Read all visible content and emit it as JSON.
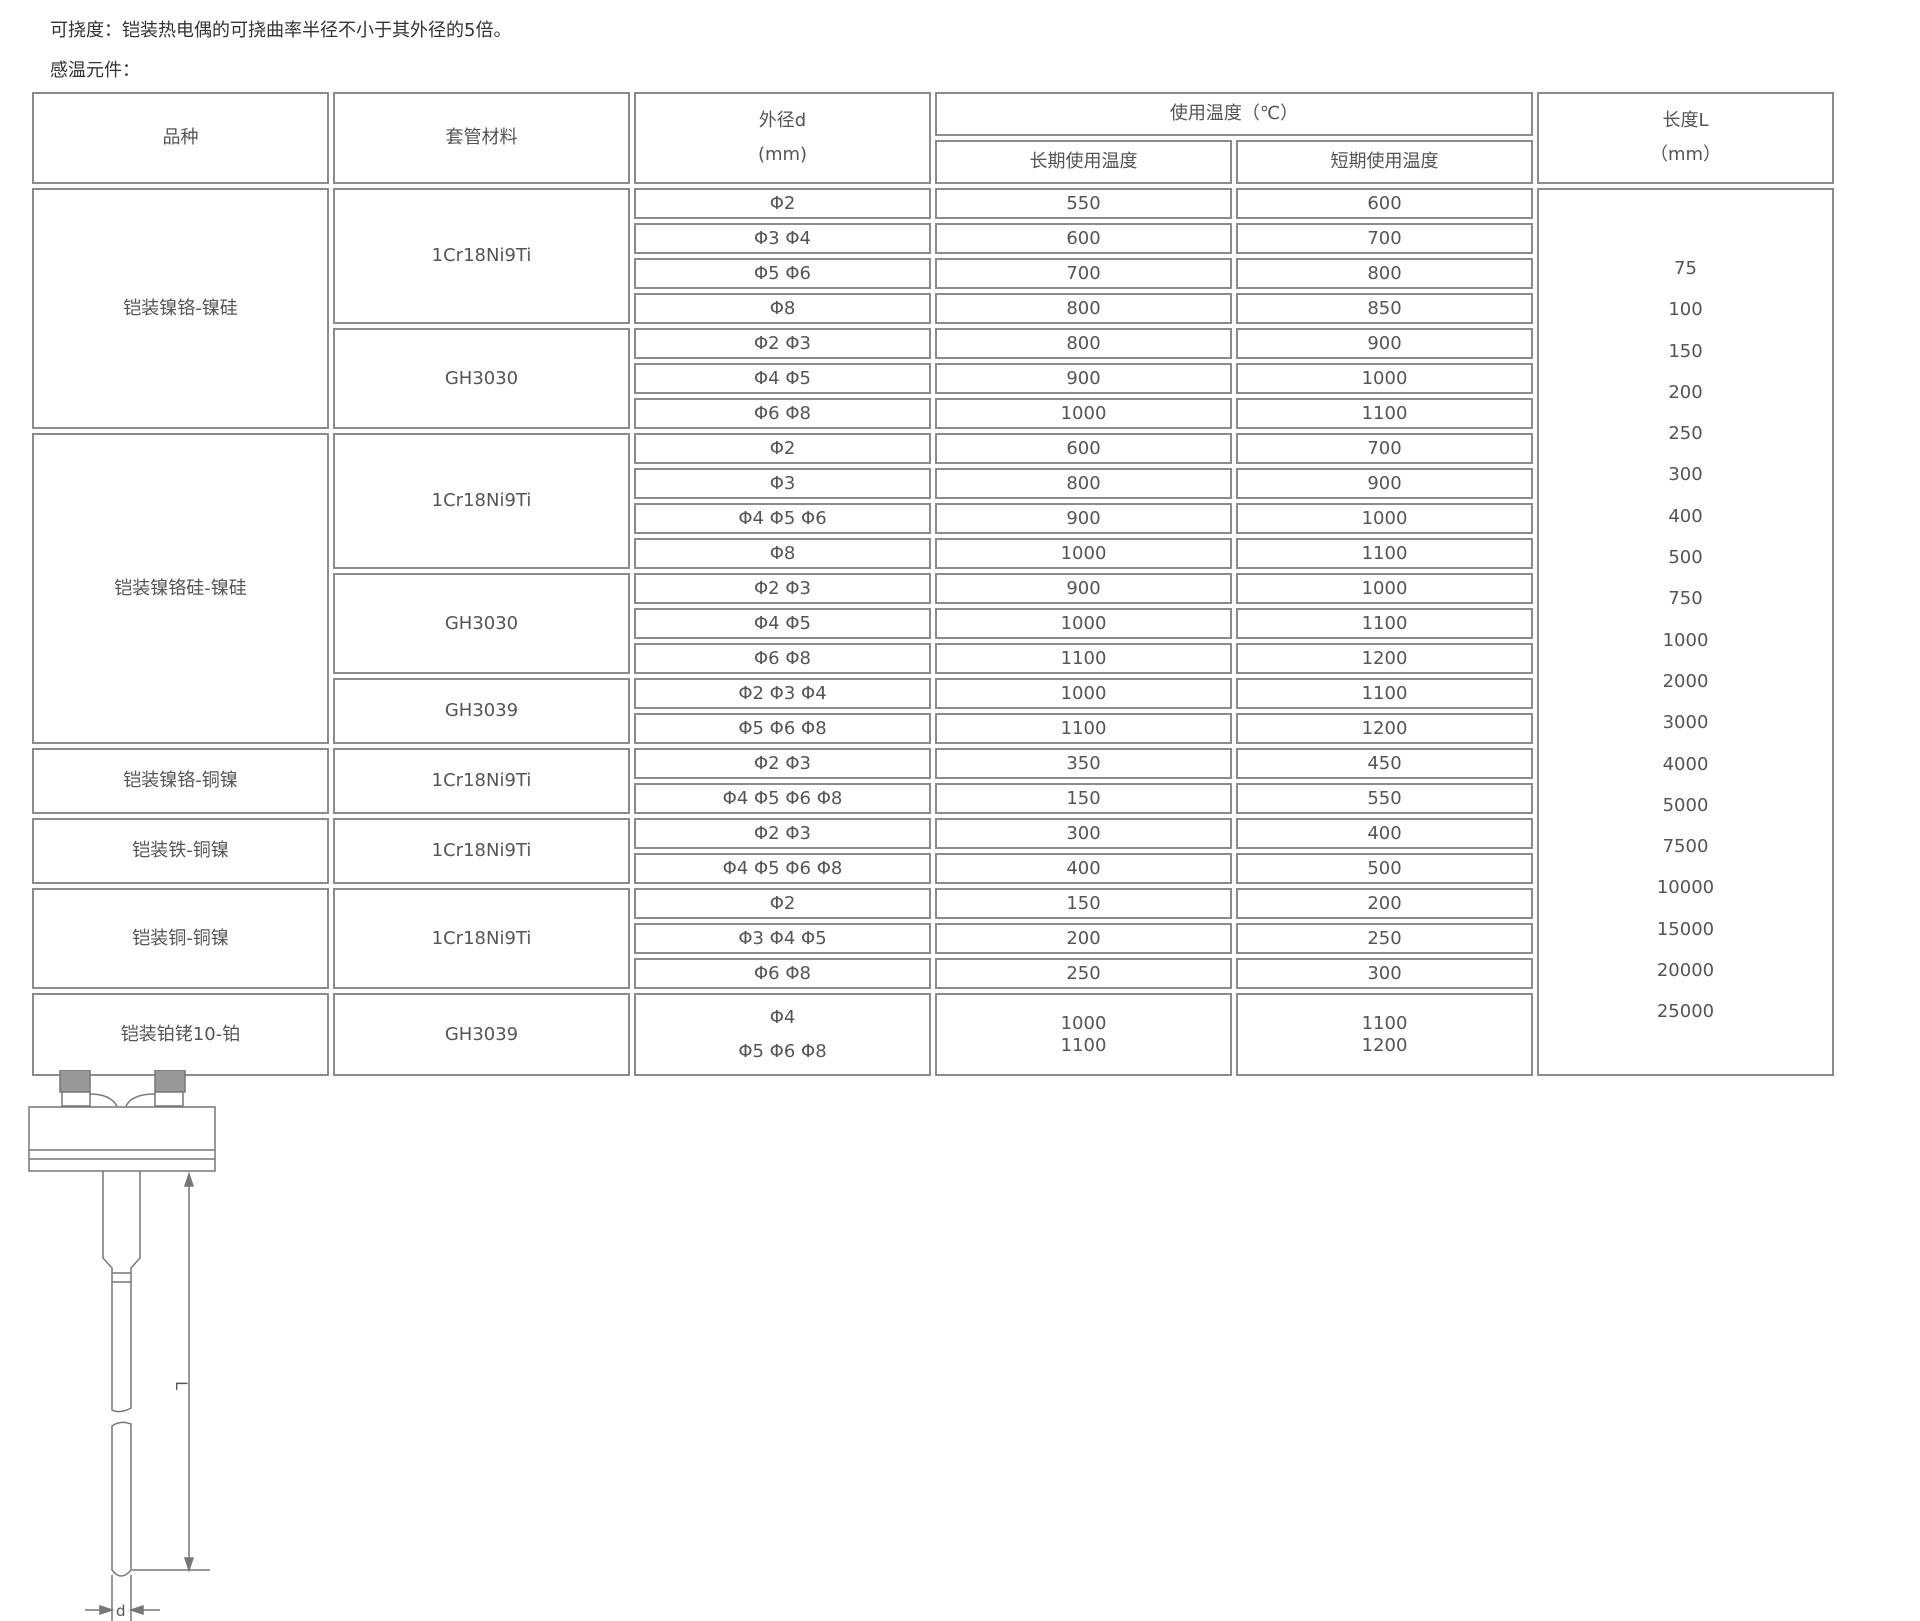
{
  "notes": {
    "flex": "可挠度：铠装热电偶的可挠曲率半径不小于其外径的5倍。",
    "element": "感温元件："
  },
  "header": {
    "variety": "品种",
    "sheath": "套管材料",
    "diameter": [
      "外径d",
      "(mm)"
    ],
    "temp": "使用温度（℃）",
    "long_term": "长期使用温度",
    "short_term": "短期使用温度",
    "length": [
      "长度L",
      "（mm）"
    ]
  },
  "groups": [
    {
      "variety": "铠装镍铬-镍硅",
      "sheaths": [
        {
          "material": "1Cr18Ni9Ti",
          "rows": [
            {
              "d": [
                "Φ2"
              ],
              "long": [
                "550"
              ],
              "short": [
                "600"
              ]
            },
            {
              "d": [
                "Φ3  Φ4"
              ],
              "long": [
                "600"
              ],
              "short": [
                "700"
              ]
            },
            {
              "d": [
                "Φ5  Φ6"
              ],
              "long": [
                "700"
              ],
              "short": [
                "800"
              ]
            },
            {
              "d": [
                "Φ8"
              ],
              "long": [
                "800"
              ],
              "short": [
                "850"
              ]
            }
          ]
        },
        {
          "material": "GH3030",
          "rows": [
            {
              "d": [
                "Φ2  Φ3"
              ],
              "long": [
                "800"
              ],
              "short": [
                "900"
              ]
            },
            {
              "d": [
                "Φ4  Φ5"
              ],
              "long": [
                "900"
              ],
              "short": [
                "1000"
              ]
            },
            {
              "d": [
                "Φ6  Φ8"
              ],
              "long": [
                "1000"
              ],
              "short": [
                "1100"
              ]
            }
          ]
        }
      ]
    },
    {
      "variety": "铠装镍铬硅-镍硅",
      "sheaths": [
        {
          "material": "1Cr18Ni9Ti",
          "rows": [
            {
              "d": [
                "Φ2"
              ],
              "long": [
                "600"
              ],
              "short": [
                "700"
              ]
            },
            {
              "d": [
                "Φ3"
              ],
              "long": [
                "800"
              ],
              "short": [
                "900"
              ]
            },
            {
              "d": [
                "Φ4  Φ5  Φ6"
              ],
              "long": [
                "900"
              ],
              "short": [
                "1000"
              ]
            },
            {
              "d": [
                "Φ8"
              ],
              "long": [
                "1000"
              ],
              "short": [
                "1100"
              ]
            }
          ]
        },
        {
          "material": "GH3030",
          "rows": [
            {
              "d": [
                "Φ2  Φ3"
              ],
              "long": [
                "900"
              ],
              "short": [
                "1000"
              ]
            },
            {
              "d": [
                "Φ4  Φ5"
              ],
              "long": [
                "1000"
              ],
              "short": [
                "1100"
              ]
            },
            {
              "d": [
                "Φ6  Φ8"
              ],
              "long": [
                "1100"
              ],
              "short": [
                "1200"
              ]
            }
          ]
        },
        {
          "material": "GH3039",
          "rows": [
            {
              "d": [
                "Φ2  Φ3  Φ4"
              ],
              "long": [
                "1000"
              ],
              "short": [
                "1100"
              ]
            },
            {
              "d": [
                "Φ5  Φ6  Φ8"
              ],
              "long": [
                "1100"
              ],
              "short": [
                "1200"
              ]
            }
          ]
        }
      ]
    },
    {
      "variety": "铠装镍铬-铜镍",
      "sheaths": [
        {
          "material": "1Cr18Ni9Ti",
          "rows": [
            {
              "d": [
                "Φ2  Φ3"
              ],
              "long": [
                "350"
              ],
              "short": [
                "450"
              ]
            },
            {
              "d": [
                "Φ4  Φ5  Φ6  Φ8"
              ],
              "long": [
                "150"
              ],
              "short": [
                "550"
              ]
            }
          ]
        }
      ]
    },
    {
      "variety": "铠装铁-铜镍",
      "sheaths": [
        {
          "material": "1Cr18Ni9Ti",
          "rows": [
            {
              "d": [
                "Φ2  Φ3"
              ],
              "long": [
                "300"
              ],
              "short": [
                "400"
              ]
            },
            {
              "d": [
                "Φ4  Φ5  Φ6  Φ8"
              ],
              "long": [
                "400"
              ],
              "short": [
                "500"
              ]
            }
          ]
        }
      ]
    },
    {
      "variety": "铠装铜-铜镍",
      "sheaths": [
        {
          "material": "1Cr18Ni9Ti",
          "rows": [
            {
              "d": [
                "Φ2"
              ],
              "long": [
                "150"
              ],
              "short": [
                "200"
              ]
            },
            {
              "d": [
                "Φ3  Φ4  Φ5"
              ],
              "long": [
                "200"
              ],
              "short": [
                "250"
              ]
            },
            {
              "d": [
                "Φ6  Φ8"
              ],
              "long": [
                "250"
              ],
              "short": [
                "300"
              ]
            }
          ]
        }
      ]
    },
    {
      "variety": "铠装铂铑10-铂",
      "sheaths": [
        {
          "material": "GH3039",
          "rows": [
            {
              "d": [
                "Φ4",
                "Φ5  Φ6  Φ8"
              ],
              "long": [
                "1000",
                "1100"
              ],
              "short": [
                "1100",
                "1200"
              ],
              "tall": true
            }
          ]
        }
      ]
    }
  ],
  "lengths": [
    "75",
    "100",
    "150",
    "200",
    "250",
    "300",
    "400",
    "500",
    "750",
    "1000",
    "2000",
    "3000",
    "4000",
    "5000",
    "7500",
    "10000",
    "15000",
    "20000",
    "25000"
  ],
  "drawing": {
    "length_label": "L",
    "diameter_label": "d"
  },
  "colors": {
    "border": "#8c8c8c",
    "text": "#555555"
  }
}
